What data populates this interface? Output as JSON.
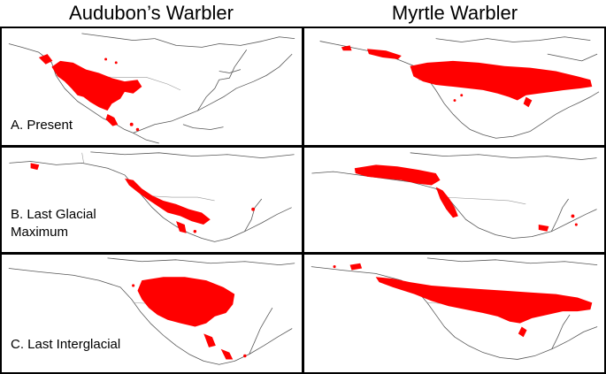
{
  "columns": [
    "Audubon’s Warbler",
    "Myrtle Warbler"
  ],
  "rows": [
    {
      "label_lines": [
        "A. Present"
      ]
    },
    {
      "label_lines": [
        "B. Last Glacial",
        "Maximum"
      ]
    },
    {
      "label_lines": [
        "C. Last Interglacial"
      ]
    }
  ],
  "colors": {
    "range": "#ff0000",
    "coastline": "#555555",
    "border": "#999999"
  }
}
